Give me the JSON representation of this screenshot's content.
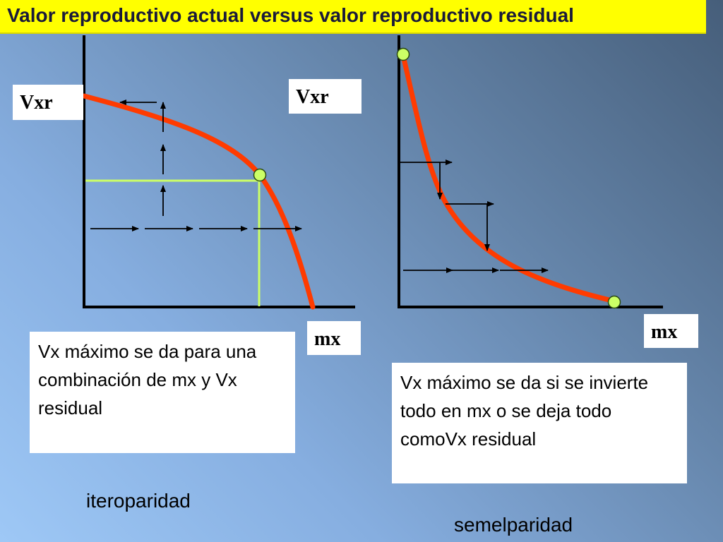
{
  "title": "Valor reproductivo actual versus valor reproductivo residual",
  "left_panel": {
    "y_label": "Vxr",
    "x_label": "mx",
    "note": "Vx máximo se da para una combinación de mx y Vx residual",
    "caption": "iteroparidad"
  },
  "right_panel": {
    "y_label": "Vxr",
    "x_label": "mx",
    "note": "Vx máximo se da si se invierte todo en mx o se deja todo comoVx residual",
    "caption": "semelparidad"
  },
  "colors": {
    "curve": "#ff3b00",
    "optimum_marker": "#ccff66",
    "guide_line": "#ccff66",
    "title_background": "#ffff00",
    "axis": "#000000"
  }
}
